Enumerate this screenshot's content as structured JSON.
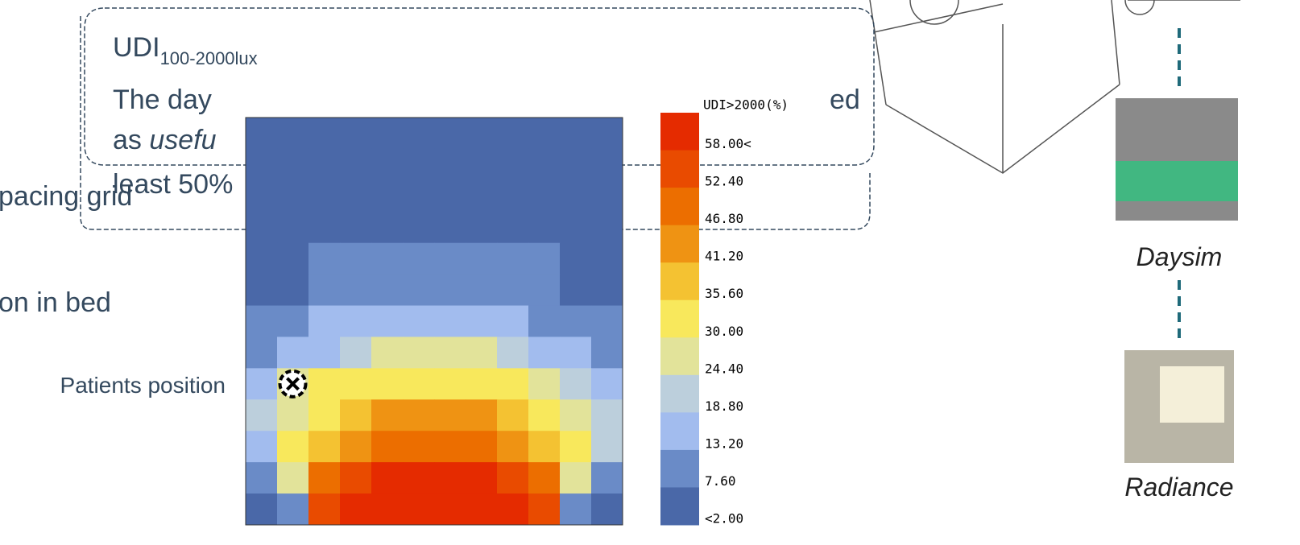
{
  "callout": {
    "title": "UDI",
    "subscript": "100-2000lux",
    "line1_start": "The day",
    "line1_end": "ed",
    "line2_start": "as",
    "line2_italic": "usefu",
    "line3": "least 50%"
  },
  "left_labels": [
    "pacing grid",
    "on in bed"
  ],
  "tools": [
    "Daysim",
    "Radiance"
  ],
  "chart_data": {
    "type": "heatmap",
    "annotation": "Patients position",
    "values": [
      [
        1,
        1,
        1,
        1,
        1,
        1,
        1,
        1,
        1,
        1,
        1,
        1
      ],
      [
        1,
        1,
        1,
        1,
        1,
        1,
        1,
        1,
        1,
        1,
        1,
        1
      ],
      [
        1,
        1,
        1,
        1,
        1,
        1,
        1,
        1,
        1,
        1,
        1,
        1
      ],
      [
        4,
        4,
        4,
        4,
        4,
        4,
        4,
        4,
        4,
        4,
        4,
        4
      ],
      [
        5,
        5,
        8,
        8,
        8,
        8,
        8,
        8,
        8,
        8,
        5,
        5
      ],
      [
        4,
        5,
        8,
        9,
        12,
        12,
        12,
        12,
        9,
        8,
        5,
        4
      ],
      [
        9,
        9,
        15,
        15,
        16,
        16,
        16,
        16,
        15,
        12,
        9,
        8
      ],
      [
        9,
        16,
        17,
        21,
        26,
        26,
        26,
        25,
        22,
        17,
        15,
        10
      ],
      [
        15,
        26,
        32,
        33,
        34,
        34,
        33,
        33,
        32,
        26,
        20,
        15
      ],
      [
        20,
        27,
        32,
        38,
        43,
        43,
        43,
        43,
        39,
        33,
        27,
        20
      ],
      [
        16,
        31,
        38,
        45,
        50,
        51,
        51,
        50,
        45,
        38,
        31,
        20
      ],
      [
        9,
        27,
        48,
        53,
        59,
        59,
        59,
        59,
        55,
        47,
        27,
        12
      ],
      [
        4,
        9,
        54,
        60,
        62,
        62,
        62,
        62,
        60,
        54,
        9,
        4
      ]
    ],
    "colorbar": {
      "title": "UDI>2000(%)",
      "ticks": [
        {
          "value": 58,
          "label": "58.00<"
        },
        {
          "value": 52.4,
          "label": "52.40"
        },
        {
          "value": 46.8,
          "label": "46.80"
        },
        {
          "value": 41.2,
          "label": "41.20"
        },
        {
          "value": 35.6,
          "label": "35.60"
        },
        {
          "value": 30,
          "label": "30.00"
        },
        {
          "value": 24.4,
          "label": "24.40"
        },
        {
          "value": 18.8,
          "label": "18.80"
        },
        {
          "value": 13.2,
          "label": "13.20"
        },
        {
          "value": 7.6,
          "label": "7.60"
        },
        {
          "value": 2,
          "label": "<2.00"
        }
      ],
      "colors": [
        "#e52b00",
        "#e94b00",
        "#ec6e00",
        "#ef9313",
        "#f4c232",
        "#f8e85c",
        "#e2e39a",
        "#bccfdc",
        "#a2bcee",
        "#6a8bc7",
        "#4a68a8"
      ]
    }
  }
}
